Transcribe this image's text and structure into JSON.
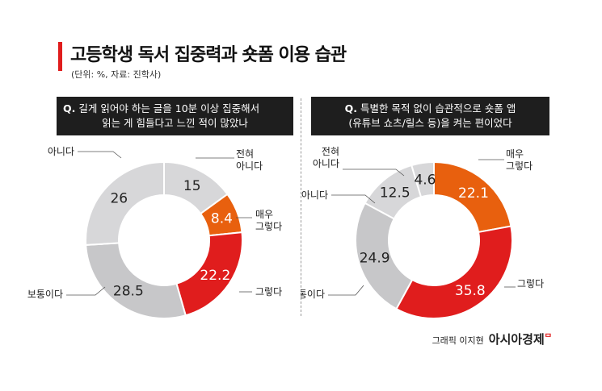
{
  "header": {
    "title": "고등학생 독서 집중력과 숏폼 이용 습관",
    "subtitle": "(단위: %, 자료: 진학사)"
  },
  "credit": {
    "text": "그래픽 이지현",
    "brand": "아시아경제"
  },
  "colors": {
    "accent": "#e01d1d",
    "orange": "#e8600e",
    "red": "#e01d1d",
    "light_gray": "#d7d7d9",
    "gray": "#c7c7c9",
    "question_bg": "#1e1e1e"
  },
  "chart_data": [
    {
      "type": "pie",
      "variant": "donut",
      "question_mark": "Q.",
      "question_lines": [
        "길게 읽어야 하는 글을 10분 이상 집중해서",
        "읽는 게 힘들다고 느낀 적이 많았나"
      ],
      "slices": [
        {
          "label": "전혀 아니다",
          "value": 15,
          "color": "#d7d7d9",
          "value_text": "15",
          "label_lines": [
            "전혀",
            "아니다"
          ]
        },
        {
          "label": "매우 그렇다",
          "value": 8.4,
          "color": "#e8600e",
          "value_text": "8.4",
          "label_lines": [
            "매우",
            "그렇다"
          ]
        },
        {
          "label": "그렇다",
          "value": 22.2,
          "color": "#e01d1d",
          "value_text": "22.2",
          "label_lines": [
            "그렇다"
          ]
        },
        {
          "label": "보통이다",
          "value": 28.5,
          "color": "#c7c7c9",
          "value_text": "28.5",
          "label_lines": [
            "보통이다"
          ]
        },
        {
          "label": "아니다",
          "value": 26,
          "color": "#d7d7d9",
          "value_text": "26",
          "label_lines": [
            "아니다"
          ]
        }
      ]
    },
    {
      "type": "pie",
      "variant": "donut",
      "question_mark": "Q.",
      "question_lines": [
        "특별한 목적 없이 습관적으로 숏폼 앱",
        "(유튜브 쇼츠/릴스 등)을 켜는 편이었다"
      ],
      "slices": [
        {
          "label": "매우 그렇다",
          "value": 22.1,
          "color": "#e8600e",
          "value_text": "22.1",
          "label_lines": [
            "매우",
            "그렇다"
          ]
        },
        {
          "label": "그렇다",
          "value": 35.8,
          "color": "#e01d1d",
          "value_text": "35.8",
          "label_lines": [
            "그렇다"
          ]
        },
        {
          "label": "보통이다",
          "value": 24.9,
          "color": "#c7c7c9",
          "value_text": "24.9",
          "label_lines": [
            "보통이다"
          ]
        },
        {
          "label": "아니다",
          "value": 12.5,
          "color": "#d7d7d9",
          "value_text": "12.5",
          "label_lines": [
            "아니다"
          ]
        },
        {
          "label": "전혀 아니다",
          "value": 4.6,
          "color": "#d7d7d9",
          "value_text": "4.6",
          "label_lines": [
            "전혀",
            "아니다"
          ]
        }
      ]
    }
  ]
}
